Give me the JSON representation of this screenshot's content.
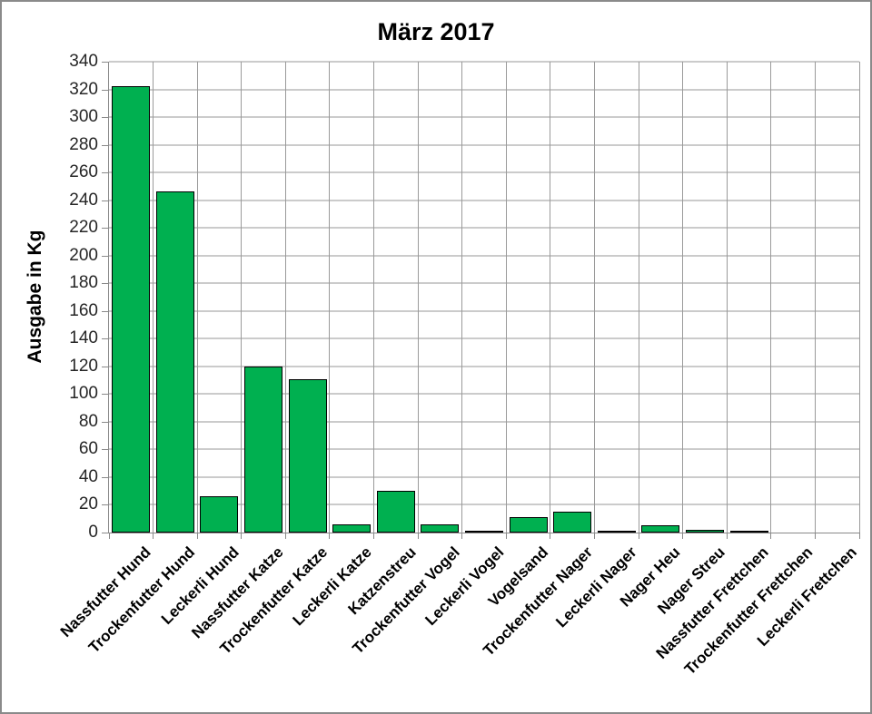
{
  "window": {
    "background": "#ffffff",
    "frame_border_color": "#8a8a8a"
  },
  "chart_data": {
    "type": "bar",
    "title": "März 2017",
    "xlabel": "",
    "ylabel": "Ausgabe in Kg",
    "ylim": [
      0,
      340
    ],
    "ytick_step": 20,
    "grid": true,
    "legend": false,
    "categories": [
      "Nassfutter Hund",
      "Trockenfutter Hund",
      "Leckerli Hund",
      "Nassfutter Katze",
      "Trockenfutter Katze",
      "Leckerli Katze",
      "Katzenstreu",
      "Trockenfutter Vogel",
      "Leckerli Vogel",
      "Vogelsand",
      "Trockenfutter Nager",
      "Leckerli Nager",
      "Nager Heu",
      "Nager Streu",
      "Nassfutter Frettchen",
      "Trockenfutter Frettchen",
      "Leckerli Frettchen"
    ],
    "values": [
      322,
      246,
      26,
      120,
      111,
      6,
      30,
      6,
      0.5,
      11,
      15,
      0.5,
      5,
      2,
      0.5,
      0,
      0
    ],
    "bar_color": "#00B050",
    "bar_border_color": "#000000",
    "h_gridline_color": "#cbcbcb",
    "v_gridline_color": "#9a9a9a",
    "axis_color": "#898989",
    "tick_label_color": "#262626",
    "text_color": "#000000"
  }
}
